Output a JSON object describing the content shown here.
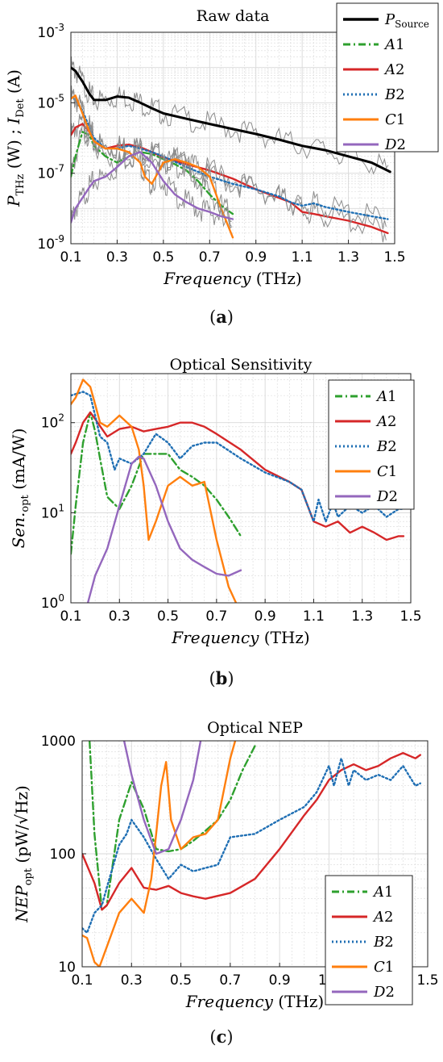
{
  "colors": {
    "black": "#000000",
    "gray": "#8c8c8c",
    "green": "#2ea02e",
    "red": "#d62728",
    "blue": "#1f6fb4",
    "orange": "#ff7f0e",
    "purple": "#9467bd",
    "grid": "#d9d9d9"
  },
  "panels": [
    {
      "caption": "a",
      "chart_data": {
        "type": "line",
        "title": "Raw data",
        "xlabel": "Frequency (THz)",
        "ylabel": "P_THz (W) ; I_Det (A)",
        "yscale": "log",
        "xlim": [
          0.1,
          1.5
        ],
        "ylim": [
          1e-09,
          0.001
        ],
        "xticks": [
          "0.1",
          "0.3",
          "0.5",
          "0.7",
          "0.9",
          "1.1",
          "1.3",
          "1.5"
        ],
        "xtick_values": [
          0.1,
          0.3,
          0.5,
          0.7,
          0.9,
          1.1,
          1.3,
          1.5
        ],
        "yticks": [
          "10-9",
          "10-7",
          "10-5",
          "10-3"
        ],
        "ytick_values": [
          1e-09,
          1e-07,
          1e-05,
          0.001
        ],
        "grid": true,
        "legend_position": "top-right",
        "series": [
          {
            "name": "P_Source",
            "color": "black",
            "style": "solid",
            "x": [
              0.1,
              0.12,
              0.15,
              0.18,
              0.2,
              0.25,
              0.3,
              0.35,
              0.4,
              0.45,
              0.5,
              0.6,
              0.7,
              0.8,
              0.9,
              1.0,
              1.1,
              1.2,
              1.3,
              1.4,
              1.48
            ],
            "y": [
              0.0001,
              8e-05,
              4e-05,
              1.8e-05,
              1.2e-05,
              1.2e-05,
              1.5e-05,
              1.4e-05,
              1e-05,
              7e-06,
              5e-06,
              3.5e-06,
              2.5e-06,
              1.8e-06,
              1.3e-06,
              9e-07,
              6e-07,
              4.5e-07,
              3e-07,
              2e-07,
              1.1e-07
            ]
          },
          {
            "name": "A1",
            "color": "green",
            "style": "dashdot",
            "x": [
              0.1,
              0.12,
              0.15,
              0.18,
              0.2,
              0.25,
              0.3,
              0.35,
              0.4,
              0.45,
              0.5,
              0.55,
              0.6,
              0.65,
              0.7,
              0.75,
              0.8
            ],
            "y": [
              8e-08,
              3e-07,
              1.5e-06,
              1.2e-06,
              6e-07,
              3e-07,
              2e-07,
              3e-07,
              4e-07,
              3.5e-07,
              2.5e-07,
              1.8e-07,
              1.2e-07,
              6e-08,
              2.5e-08,
              1.2e-08,
              7e-09
            ]
          },
          {
            "name": "A2",
            "color": "red",
            "style": "solid",
            "x": [
              0.1,
              0.12,
              0.15,
              0.18,
              0.2,
              0.25,
              0.3,
              0.35,
              0.4,
              0.45,
              0.5,
              0.6,
              0.7,
              0.8,
              0.9,
              1.0,
              1.05,
              1.1,
              1.15,
              1.2,
              1.3,
              1.4,
              1.47
            ],
            "y": [
              1.2e-06,
              2e-06,
              2.5e-06,
              1.5e-06,
              8e-07,
              5e-07,
              6e-07,
              6.5e-07,
              5.5e-07,
              4e-07,
              2.8e-07,
              1.8e-07,
              1.2e-07,
              7e-08,
              3.5e-08,
              2e-08,
              1.5e-08,
              8e-09,
              7e-09,
              6e-09,
              4.5e-09,
              3e-09,
              2e-09
            ]
          },
          {
            "name": "B2",
            "color": "blue",
            "style": "dotted",
            "x": [
              0.1,
              0.12,
              0.15,
              0.18,
              0.2,
              0.25,
              0.3,
              0.35,
              0.4,
              0.45,
              0.5,
              0.6,
              0.7,
              0.8,
              0.9,
              1.0,
              1.05,
              1.1,
              1.15,
              1.2,
              1.3,
              1.4,
              1.47
            ],
            "y": [
              1.5e-05,
              1.2e-05,
              6e-06,
              2e-06,
              1e-06,
              5e-07,
              5e-07,
              6e-07,
              5e-07,
              4e-07,
              3e-07,
              1.5e-07,
              8e-08,
              5e-08,
              3.5e-08,
              2.2e-08,
              1.5e-08,
              1.2e-08,
              1.4e-08,
              1.1e-08,
              8e-09,
              6e-09,
              5e-09
            ]
          },
          {
            "name": "C1",
            "color": "orange",
            "style": "solid",
            "x": [
              0.1,
              0.12,
              0.15,
              0.18,
              0.2,
              0.25,
              0.3,
              0.35,
              0.4,
              0.42,
              0.45,
              0.5,
              0.55,
              0.6,
              0.65,
              0.7,
              0.75,
              0.8
            ],
            "y": [
              1.3e-05,
              1.6e-05,
              5e-06,
              1.5e-06,
              8e-07,
              5e-07,
              5e-07,
              4e-07,
              2e-07,
              8e-08,
              5e-08,
              2e-07,
              2.5e-07,
              2e-07,
              1.5e-07,
              8e-08,
              1e-08,
              1.5e-09
            ]
          },
          {
            "name": "D2",
            "color": "purple",
            "style": "solid",
            "x": [
              0.1,
              0.12,
              0.15,
              0.18,
              0.2,
              0.25,
              0.3,
              0.35,
              0.4,
              0.45,
              0.5,
              0.55,
              0.6,
              0.65,
              0.7,
              0.75,
              0.8
            ],
            "y": [
              4e-09,
              1e-08,
              2e-08,
              4e-08,
              6e-08,
              8e-08,
              1.5e-07,
              3e-07,
              4e-07,
              2e-07,
              6e-08,
              2.5e-08,
              1.5e-08,
              1e-08,
              8e-09,
              6e-09,
              5e-09
            ]
          }
        ]
      }
    },
    {
      "caption": "b",
      "chart_data": {
        "type": "line",
        "title": "Optical Sensitivity",
        "xlabel": "Frequency (THz)",
        "ylabel": "Sen.opt (mA/W)",
        "yscale": "log",
        "xlim": [
          0.1,
          1.5
        ],
        "ylim": [
          1,
          350
        ],
        "xticks": [
          "0.1",
          "0.3",
          "0.5",
          "0.7",
          "0.9",
          "1.1",
          "1.3",
          "1.5"
        ],
        "xtick_values": [
          0.1,
          0.3,
          0.5,
          0.7,
          0.9,
          1.1,
          1.3,
          1.5
        ],
        "yticks": [
          "10^0",
          "10^1",
          "10^2"
        ],
        "ytick_values": [
          1,
          10,
          100
        ],
        "grid": true,
        "legend_position": "top-right",
        "series": [
          {
            "name": "A1",
            "color": "green",
            "style": "dashdot",
            "x": [
              0.1,
              0.12,
              0.15,
              0.18,
              0.2,
              0.22,
              0.25,
              0.3,
              0.35,
              0.4,
              0.45,
              0.5,
              0.55,
              0.6,
              0.65,
              0.7,
              0.75,
              0.8
            ],
            "y": [
              3.5,
              12,
              60,
              130,
              80,
              40,
              15,
              11,
              20,
              45,
              45,
              45,
              30,
              25,
              20,
              14,
              9,
              5.5
            ]
          },
          {
            "name": "A2",
            "color": "red",
            "style": "solid",
            "x": [
              0.1,
              0.12,
              0.15,
              0.18,
              0.2,
              0.25,
              0.3,
              0.35,
              0.4,
              0.45,
              0.5,
              0.55,
              0.6,
              0.65,
              0.7,
              0.8,
              0.9,
              1.0,
              1.05,
              1.1,
              1.15,
              1.2,
              1.25,
              1.3,
              1.35,
              1.4,
              1.45,
              1.47
            ],
            "y": [
              45,
              60,
              100,
              130,
              110,
              70,
              85,
              90,
              80,
              85,
              90,
              100,
              100,
              90,
              75,
              50,
              30,
              22,
              18,
              8,
              7,
              8,
              6,
              7,
              6,
              5,
              5.5,
              5.5
            ]
          },
          {
            "name": "B2",
            "color": "blue",
            "style": "dotted",
            "x": [
              0.1,
              0.15,
              0.18,
              0.2,
              0.22,
              0.25,
              0.28,
              0.3,
              0.35,
              0.4,
              0.45,
              0.5,
              0.55,
              0.6,
              0.65,
              0.7,
              0.8,
              0.9,
              1.0,
              1.05,
              1.1,
              1.12,
              1.15,
              1.18,
              1.2,
              1.25,
              1.3,
              1.35,
              1.4,
              1.45,
              1.47
            ],
            "y": [
              200,
              220,
              200,
              120,
              70,
              60,
              30,
              40,
              35,
              45,
              75,
              60,
              40,
              55,
              60,
              60,
              40,
              28,
              22,
              18,
              8,
              14,
              8,
              13,
              9,
              12,
              10,
              12,
              9,
              11,
              11
            ]
          },
          {
            "name": "C1",
            "color": "orange",
            "style": "solid",
            "x": [
              0.1,
              0.12,
              0.15,
              0.18,
              0.2,
              0.22,
              0.25,
              0.3,
              0.35,
              0.38,
              0.4,
              0.42,
              0.45,
              0.5,
              0.55,
              0.6,
              0.65,
              0.7,
              0.75,
              0.78
            ],
            "y": [
              160,
              190,
              300,
              250,
              160,
              100,
              90,
              120,
              90,
              50,
              20,
              5,
              8,
              20,
              25,
              20,
              22,
              5,
              1.5,
              1
            ]
          },
          {
            "name": "D2",
            "color": "purple",
            "style": "solid",
            "x": [
              0.17,
              0.2,
              0.25,
              0.3,
              0.35,
              0.38,
              0.4,
              0.45,
              0.5,
              0.55,
              0.6,
              0.65,
              0.7,
              0.75,
              0.8
            ],
            "y": [
              1,
              2,
              4,
              12,
              35,
              42,
              40,
              20,
              8,
              4,
              3,
              2.5,
              2.1,
              2,
              2.3
            ]
          }
        ]
      }
    },
    {
      "caption": "c",
      "chart_data": {
        "type": "line",
        "title": "Optical NEP",
        "xlabel": "Frequency (THz)",
        "ylabel": "NEP_opt (pW/√Hz)",
        "yscale": "log",
        "xlim": [
          0.1,
          1.5
        ],
        "ylim": [
          10,
          1000
        ],
        "xticks": [
          "0.1",
          "0.3",
          "0.5",
          "0.7",
          "0.9",
          "1.1",
          "1.3",
          "1.5"
        ],
        "xtick_values": [
          0.1,
          0.3,
          0.5,
          0.7,
          0.9,
          1.1,
          1.3,
          1.5
        ],
        "yticks": [
          "10",
          "100",
          "1000"
        ],
        "ytick_values": [
          10,
          100,
          1000
        ],
        "grid": true,
        "legend_position": "bottom-right",
        "series": [
          {
            "name": "A1",
            "color": "green",
            "style": "dashdot",
            "x": [
              0.13,
              0.15,
              0.18,
              0.2,
              0.25,
              0.3,
              0.35,
              0.4,
              0.45,
              0.5,
              0.55,
              0.6,
              0.65,
              0.7,
              0.75,
              0.8
            ],
            "y": [
              1000,
              150,
              32,
              35,
              200,
              430,
              250,
              110,
              105,
              110,
              130,
              160,
              200,
              300,
              550,
              900
            ]
          },
          {
            "name": "A2",
            "color": "red",
            "style": "solid",
            "x": [
              0.1,
              0.15,
              0.18,
              0.2,
              0.25,
              0.3,
              0.35,
              0.4,
              0.45,
              0.5,
              0.55,
              0.6,
              0.7,
              0.8,
              0.9,
              1.0,
              1.05,
              1.1,
              1.15,
              1.2,
              1.25,
              1.3,
              1.35,
              1.4,
              1.45,
              1.47
            ],
            "y": [
              100,
              55,
              32,
              35,
              55,
              75,
              50,
              48,
              52,
              45,
              42,
              40,
              45,
              60,
              110,
              220,
              300,
              450,
              550,
              620,
              550,
              600,
              700,
              780,
              700,
              750
            ]
          },
          {
            "name": "B2",
            "color": "blue",
            "style": "dotted",
            "x": [
              0.1,
              0.12,
              0.15,
              0.18,
              0.2,
              0.25,
              0.28,
              0.3,
              0.35,
              0.4,
              0.45,
              0.5,
              0.55,
              0.6,
              0.65,
              0.7,
              0.8,
              0.9,
              1.0,
              1.05,
              1.1,
              1.12,
              1.15,
              1.18,
              1.2,
              1.25,
              1.3,
              1.35,
              1.4,
              1.45,
              1.47
            ],
            "y": [
              22,
              20,
              30,
              35,
              50,
              120,
              150,
              200,
              140,
              90,
              60,
              80,
              70,
              75,
              80,
              140,
              150,
              200,
              260,
              350,
              600,
              400,
              700,
              400,
              550,
              450,
              500,
              450,
              600,
              400,
              420
            ]
          },
          {
            "name": "C1",
            "color": "orange",
            "style": "solid",
            "x": [
              0.1,
              0.12,
              0.15,
              0.17,
              0.2,
              0.25,
              0.3,
              0.35,
              0.38,
              0.4,
              0.42,
              0.44,
              0.46,
              0.5,
              0.55,
              0.6,
              0.65,
              0.7,
              0.72
            ],
            "y": [
              19,
              18,
              11,
              10,
              15,
              30,
              40,
              30,
              60,
              150,
              400,
              650,
              200,
              110,
              140,
              150,
              200,
              700,
              1000
            ]
          },
          {
            "name": "D2",
            "color": "purple",
            "style": "solid",
            "x": [
              0.27,
              0.3,
              0.35,
              0.4,
              0.45,
              0.5,
              0.55,
              0.58
            ],
            "y": [
              1000,
              500,
              200,
              100,
              110,
              200,
              450,
              1000
            ]
          }
        ]
      }
    }
  ]
}
